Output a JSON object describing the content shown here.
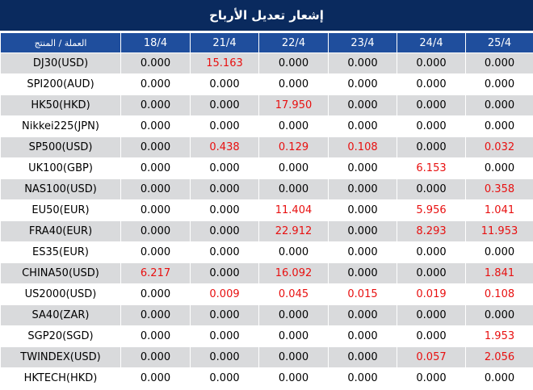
{
  "title": "إشعار تعديل الأرباح",
  "table": {
    "name_header": "العملة / المنتج",
    "date_headers": [
      "18/4",
      "21/4",
      "22/4",
      "23/4",
      "24/4",
      "25/4"
    ],
    "rows": [
      {
        "name": "DJ30(USD)",
        "values": [
          "0.000",
          "15.163",
          "0.000",
          "0.000",
          "0.000",
          "0.000"
        ]
      },
      {
        "name": "SPI200(AUD)",
        "values": [
          "0.000",
          "0.000",
          "0.000",
          "0.000",
          "0.000",
          "0.000"
        ]
      },
      {
        "name": "HK50(HKD)",
        "values": [
          "0.000",
          "0.000",
          "17.950",
          "0.000",
          "0.000",
          "0.000"
        ]
      },
      {
        "name": "Nikkei225(JPN)",
        "values": [
          "0.000",
          "0.000",
          "0.000",
          "0.000",
          "0.000",
          "0.000"
        ]
      },
      {
        "name": "SP500(USD)",
        "values": [
          "0.000",
          "0.438",
          "0.129",
          "0.108",
          "0.000",
          "0.032"
        ]
      },
      {
        "name": "UK100(GBP)",
        "values": [
          "0.000",
          "0.000",
          "0.000",
          "0.000",
          "6.153",
          "0.000"
        ]
      },
      {
        "name": "NAS100(USD)",
        "values": [
          "0.000",
          "0.000",
          "0.000",
          "0.000",
          "0.000",
          "0.358"
        ]
      },
      {
        "name": "EU50(EUR)",
        "values": [
          "0.000",
          "0.000",
          "11.404",
          "0.000",
          "5.956",
          "1.041"
        ]
      },
      {
        "name": "FRA40(EUR)",
        "values": [
          "0.000",
          "0.000",
          "22.912",
          "0.000",
          "8.293",
          "11.953"
        ]
      },
      {
        "name": "ES35(EUR)",
        "values": [
          "0.000",
          "0.000",
          "0.000",
          "0.000",
          "0.000",
          "0.000"
        ]
      },
      {
        "name": "CHINA50(USD)",
        "values": [
          "6.217",
          "0.000",
          "16.092",
          "0.000",
          "0.000",
          "1.841"
        ]
      },
      {
        "name": "US2000(USD)",
        "values": [
          "0.000",
          "0.009",
          "0.045",
          "0.015",
          "0.019",
          "0.108"
        ]
      },
      {
        "name": "SA40(ZAR)",
        "values": [
          "0.000",
          "0.000",
          "0.000",
          "0.000",
          "0.000",
          "0.000"
        ]
      },
      {
        "name": "SGP20(SGD)",
        "values": [
          "0.000",
          "0.000",
          "0.000",
          "0.000",
          "0.000",
          "1.953"
        ]
      },
      {
        "name": "TWINDEX(USD)",
        "values": [
          "0.000",
          "0.000",
          "0.000",
          "0.000",
          "0.057",
          "2.056"
        ]
      },
      {
        "name": "HKTECH(HKD)",
        "values": [
          "0.000",
          "0.000",
          "0.000",
          "0.000",
          "0.000",
          "0.000"
        ]
      }
    ]
  },
  "colors": {
    "title_background": "#0a2a5e",
    "header_background": "#1f4e9d",
    "row_shade": "#d9dadc",
    "nonzero_value": "#e81010"
  }
}
